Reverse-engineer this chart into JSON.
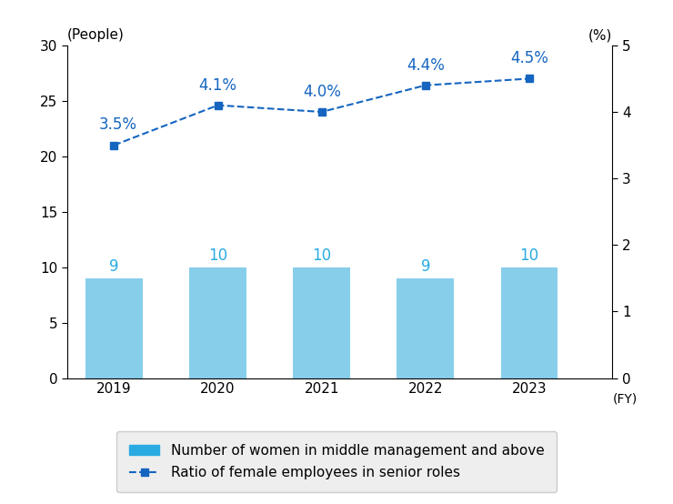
{
  "years": [
    2019,
    2020,
    2021,
    2022,
    2023
  ],
  "bar_values": [
    9,
    10,
    10,
    9,
    10
  ],
  "line_values": [
    3.5,
    4.1,
    4.0,
    4.4,
    4.5
  ],
  "bar_color": "#87CEEB",
  "legend_bar_color": "#29ABE2",
  "line_color": "#1565C0",
  "bar_label_color": "#29ABE2",
  "left_ylabel": "(People)",
  "right_ylabel": "(%)",
  "xlabel": "(FY)",
  "left_ylim": [
    0,
    30
  ],
  "right_ylim": [
    0,
    5
  ],
  "left_yticks": [
    0,
    5,
    10,
    15,
    20,
    25,
    30
  ],
  "right_yticks": [
    0,
    1,
    2,
    3,
    4,
    5
  ],
  "legend_bar_label": "Number of women in middle management and above",
  "legend_line_label": "Ratio of female employees in senior roles",
  "line_labels": [
    "3.5%",
    "4.1%",
    "4.0%",
    "4.4%",
    "4.5%"
  ],
  "bar_labels": [
    "9",
    "10",
    "10",
    "9",
    "10"
  ],
  "background_color": "#ffffff",
  "legend_bg_color": "#eeeeee",
  "fig_width": 7.4,
  "fig_height": 5.54
}
